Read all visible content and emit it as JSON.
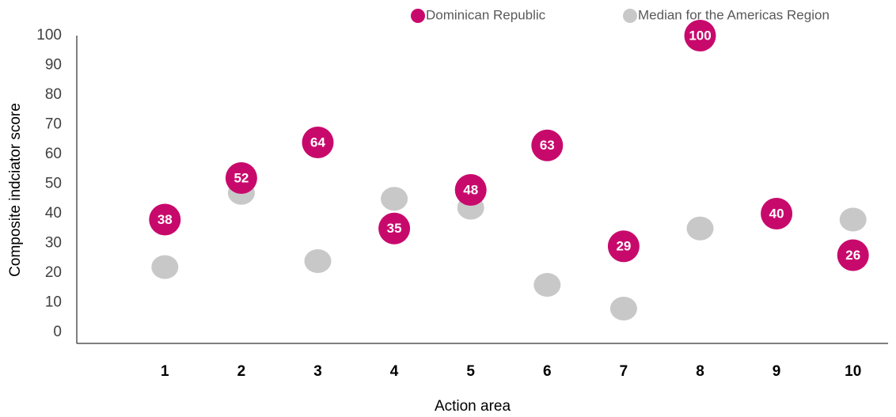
{
  "chart_data": {
    "type": "scatter",
    "x_label": "Action area",
    "y_label": "Composite indciator score",
    "categories": [
      "1",
      "2",
      "3",
      "4",
      "5",
      "6",
      "7",
      "8",
      "9",
      "10"
    ],
    "series": [
      {
        "name": "Median for the Americas Region",
        "color": "#c8c8c8",
        "values": [
          22,
          47,
          24,
          45,
          42,
          16,
          8,
          35,
          39,
          38
        ]
      },
      {
        "name": "Dominican Republic",
        "color": "#c8096c",
        "values": [
          38,
          52,
          64,
          35,
          48,
          63,
          29,
          100,
          40,
          26
        ]
      }
    ],
    "ylim": [
      0,
      100
    ],
    "yticks": [
      0,
      10,
      20,
      30,
      40,
      50,
      60,
      70,
      80,
      90,
      100
    ]
  }
}
